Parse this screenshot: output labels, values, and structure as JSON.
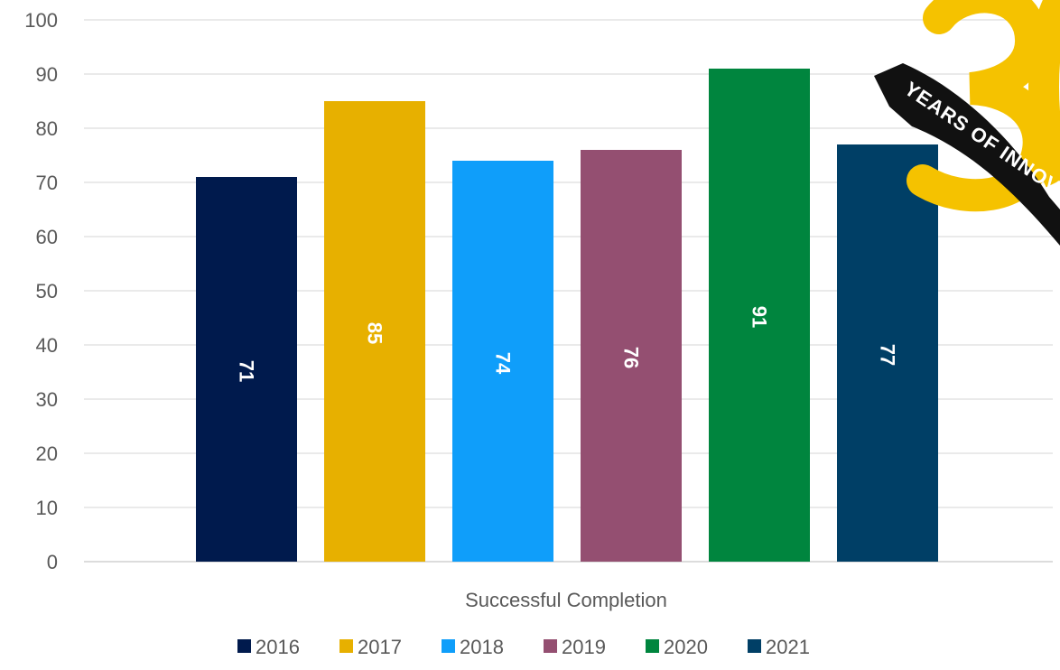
{
  "chart_data": {
    "type": "bar",
    "categories": [
      "Successful Completion"
    ],
    "series": [
      {
        "name": "2016",
        "values": [
          71
        ],
        "color": "#001A4D"
      },
      {
        "name": "2017",
        "values": [
          85
        ],
        "color": "#E7B000"
      },
      {
        "name": "2018",
        "values": [
          74
        ],
        "color": "#0F9EFA"
      },
      {
        "name": "2019",
        "values": [
          76
        ],
        "color": "#944F71"
      },
      {
        "name": "2020",
        "values": [
          91
        ],
        "color": "#00853E"
      },
      {
        "name": "2021",
        "values": [
          77
        ],
        "color": "#003F66"
      }
    ],
    "yticks": [
      "0",
      "10",
      "20",
      "30",
      "40",
      "50",
      "60",
      "70",
      "80",
      "90",
      "100"
    ],
    "ylim": [
      0,
      100
    ],
    "grid": true,
    "legend_position": "bottom",
    "data_labels": true
  },
  "badge": {
    "numeral_color": "#F5C200",
    "ribbon_color": "#111111",
    "text": "YEARS OF INNOVATION"
  }
}
